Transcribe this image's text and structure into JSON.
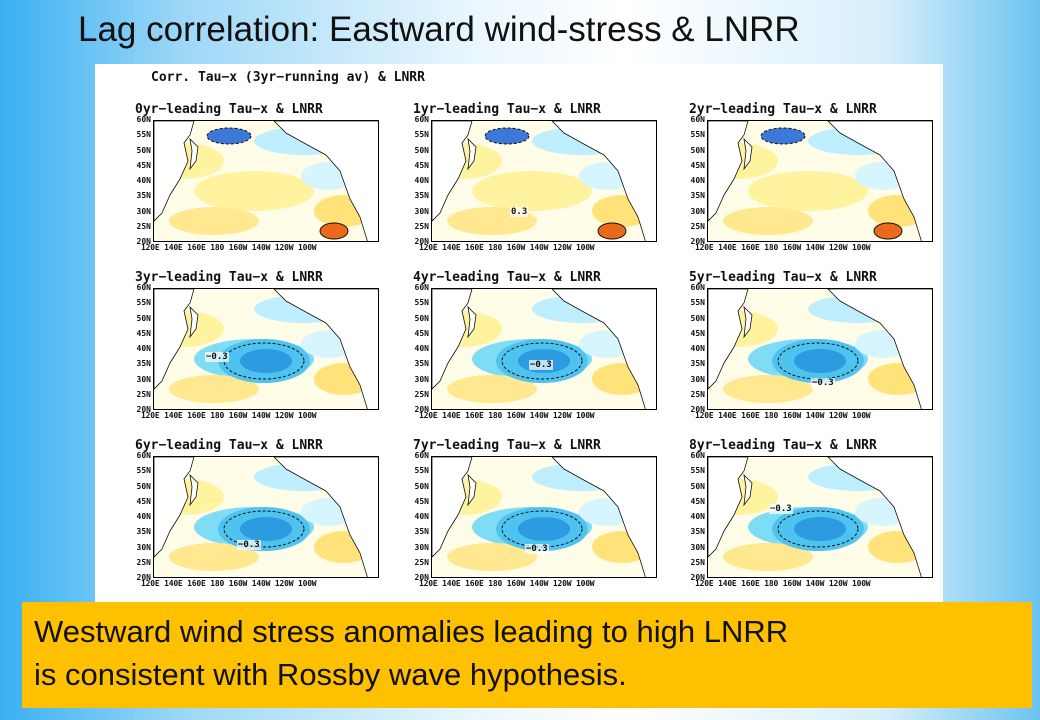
{
  "slide_title": "Lag correlation: Eastward wind-stress & LNRR",
  "figure_header": "Corr. Tau−x (3yr−running av) & LNRR",
  "panels": [
    {
      "title": "0yr−leading Tau−x & LNRR",
      "contour_label": ""
    },
    {
      "title": "1yr−leading Tau−x & LNRR",
      "contour_label": "0.3"
    },
    {
      "title": "2yr−leading Tau−x & LNRR",
      "contour_label": ""
    },
    {
      "title": "3yr−leading Tau−x & LNRR",
      "contour_label": "−0.3"
    },
    {
      "title": "4yr−leading Tau−x & LNRR",
      "contour_label": "−0.3"
    },
    {
      "title": "5yr−leading Tau−x & LNRR",
      "contour_label": "−0.3"
    },
    {
      "title": "6yr−leading Tau−x & LNRR",
      "contour_label": "−0.3"
    },
    {
      "title": "7yr−leading Tau−x & LNRR",
      "contour_label": "−0.3"
    },
    {
      "title": "8yr−leading Tau−x & LNRR",
      "contour_label": "−0.3"
    }
  ],
  "lat_ticks": [
    "60N",
    "55N",
    "50N",
    "45N",
    "40N",
    "35N",
    "30N",
    "25N",
    "20N"
  ],
  "lon_ticks": "120E 140E 160E 180 160W 140W 120W 100W",
  "caption": {
    "line1": "Westward wind stress anomalies leading to high LNRR",
    "line2": "is consistent with Rossby wave hypothesis."
  }
}
